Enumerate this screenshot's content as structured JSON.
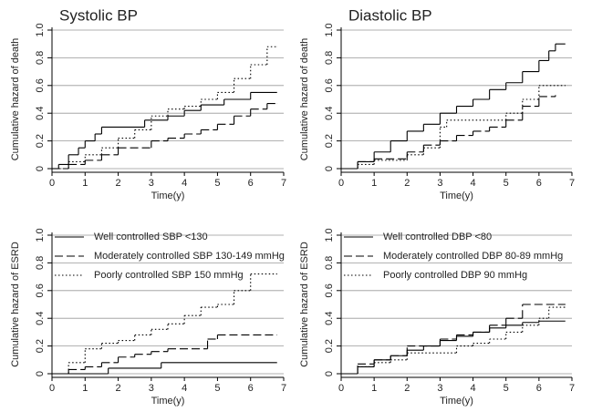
{
  "chart_data": [
    {
      "type": "step",
      "title": "Systolic BP",
      "xlabel": "Time(y)",
      "ylabel": "Cumulative hazard of death",
      "xlim": [
        0,
        7
      ],
      "xticks": [
        0,
        1,
        2,
        3,
        4,
        5,
        6,
        7
      ],
      "ylim": [
        0,
        1
      ],
      "yticks": [
        0,
        0.2,
        0.4,
        0.6,
        0.8,
        {
          "value": 1,
          "label": "1.0"
        }
      ],
      "grid": true,
      "series": [
        {
          "color": "#000000",
          "dash": "solid",
          "x": [
            0,
            0.2,
            0.5,
            0.8,
            1,
            1.3,
            1.5,
            2.8,
            3.5,
            4,
            4.5,
            5.2,
            6,
            6.8
          ],
          "values": [
            0,
            0.03,
            0.1,
            0.15,
            0.2,
            0.25,
            0.3,
            0.35,
            0.38,
            0.42,
            0.46,
            0.5,
            0.55,
            0.55
          ]
        },
        {
          "color": "#000000",
          "dash": "dashed",
          "x": [
            0,
            0.5,
            1,
            1.5,
            2,
            3,
            3.5,
            4,
            4.5,
            5,
            5.5,
            6,
            6.5,
            6.8
          ],
          "values": [
            0,
            0.03,
            0.06,
            0.1,
            0.15,
            0.2,
            0.22,
            0.25,
            0.28,
            0.32,
            0.38,
            0.43,
            0.47,
            0.47
          ]
        },
        {
          "color": "#000000",
          "dash": "dotted",
          "x": [
            0,
            0.5,
            1,
            1.5,
            2,
            2.5,
            3,
            3.5,
            4,
            4.5,
            5,
            5.5,
            6,
            6.5,
            6.8
          ],
          "values": [
            0,
            0.05,
            0.1,
            0.15,
            0.22,
            0.28,
            0.38,
            0.43,
            0.45,
            0.5,
            0.55,
            0.65,
            0.75,
            0.88,
            0.88
          ]
        }
      ]
    },
    {
      "type": "step",
      "title": "Diastolic BP",
      "xlabel": "Time(y)",
      "ylabel": "Cumulative hazard of death",
      "xlim": [
        0,
        7
      ],
      "xticks": [
        0,
        1,
        2,
        3,
        4,
        5,
        6,
        7
      ],
      "ylim": [
        0,
        1
      ],
      "yticks": [
        0,
        0.2,
        0.4,
        0.6,
        0.8,
        {
          "value": 1,
          "label": "1.0"
        }
      ],
      "grid": true,
      "series": [
        {
          "color": "#000000",
          "dash": "solid",
          "x": [
            0,
            0.5,
            1,
            1.5,
            2,
            2.5,
            3,
            3.5,
            4,
            4.5,
            5,
            5.5,
            6,
            6.3,
            6.5,
            6.8
          ],
          "values": [
            0,
            0.05,
            0.12,
            0.2,
            0.27,
            0.32,
            0.4,
            0.45,
            0.5,
            0.57,
            0.62,
            0.7,
            0.78,
            0.85,
            0.9,
            0.9
          ]
        },
        {
          "color": "#000000",
          "dash": "dashed",
          "x": [
            0,
            0.5,
            1,
            2,
            2.5,
            3,
            3.5,
            4,
            4.5,
            5,
            5.5,
            6,
            6.5
          ],
          "values": [
            0,
            0.05,
            0.07,
            0.12,
            0.17,
            0.2,
            0.24,
            0.27,
            0.3,
            0.35,
            0.45,
            0.52,
            0.53
          ]
        },
        {
          "color": "#000000",
          "dash": "dotted",
          "x": [
            0,
            0.5,
            1,
            2,
            2.5,
            3,
            3.2,
            5,
            5.5,
            6,
            6.8
          ],
          "values": [
            0,
            0.03,
            0.06,
            0.1,
            0.15,
            0.3,
            0.35,
            0.4,
            0.5,
            0.6,
            0.6
          ]
        }
      ]
    },
    {
      "type": "step",
      "xlabel": "Time(y)",
      "ylabel": "Cumulative hazard of ESRD",
      "xlim": [
        0,
        7
      ],
      "xticks": [
        0,
        1,
        2,
        3,
        4,
        5,
        6,
        7
      ],
      "ylim": [
        0,
        1
      ],
      "yticks": [
        0,
        0.2,
        0.4,
        0.6,
        0.8,
        {
          "value": 1,
          "label": "1.0"
        }
      ],
      "grid": true,
      "legend": "upper left",
      "series": [
        {
          "name": "Well controlled SBP <130",
          "color": "#000000",
          "dash": "solid",
          "x": [
            0,
            1.7,
            3.3,
            6.8
          ],
          "values": [
            0,
            0.04,
            0.08,
            0.08
          ]
        },
        {
          "name": "Moderately controlled SBP 130-149 mmHg",
          "color": "#000000",
          "dash": "dashed",
          "x": [
            0,
            0.5,
            1,
            1.5,
            2,
            2.5,
            3,
            3.5,
            4.7,
            5,
            6.8
          ],
          "values": [
            0,
            0.03,
            0.05,
            0.08,
            0.12,
            0.14,
            0.16,
            0.18,
            0.25,
            0.28,
            0.28
          ]
        },
        {
          "name": "Poorly controlled SBP  150 mmHg",
          "color": "#000000",
          "dash": "dotted",
          "x": [
            0,
            0.5,
            1,
            1.5,
            2,
            2.5,
            3,
            3.5,
            4,
            4.5,
            5,
            5.5,
            6,
            6.8
          ],
          "values": [
            0,
            0.08,
            0.18,
            0.22,
            0.24,
            0.28,
            0.32,
            0.36,
            0.42,
            0.48,
            0.5,
            0.6,
            0.72,
            0.72
          ]
        }
      ]
    },
    {
      "type": "step",
      "xlabel": "Time(y)",
      "ylabel": "Cumulative hazard of ESRD",
      "xlim": [
        0,
        7
      ],
      "xticks": [
        0,
        1,
        2,
        3,
        4,
        5,
        6,
        7
      ],
      "ylim": [
        0,
        1
      ],
      "yticks": [
        0,
        0.2,
        0.4,
        0.6,
        0.8,
        {
          "value": 1,
          "label": "1.0"
        }
      ],
      "grid": true,
      "legend": "upper left",
      "series": [
        {
          "name": "Well controlled DBP <80",
          "color": "#000000",
          "dash": "solid",
          "x": [
            0,
            0.5,
            1,
            1.5,
            2,
            2.5,
            3,
            3.5,
            4,
            4.5,
            5,
            5.5,
            6,
            6.8
          ],
          "values": [
            0,
            0.05,
            0.1,
            0.13,
            0.17,
            0.2,
            0.24,
            0.27,
            0.3,
            0.33,
            0.35,
            0.37,
            0.38,
            0.38
          ]
        },
        {
          "name": "Moderately controlled DBP 80-89 mmHg",
          "color": "#000000",
          "dash": "dashed",
          "x": [
            0,
            0.5,
            1,
            1.5,
            2,
            3,
            3.5,
            4,
            4.5,
            5,
            5.5,
            6.8
          ],
          "values": [
            0,
            0.07,
            0.1,
            0.13,
            0.2,
            0.25,
            0.28,
            0.3,
            0.35,
            0.4,
            0.5,
            0.5
          ]
        },
        {
          "name": "Poorly controlled DBP  90 mmHg",
          "color": "#000000",
          "dash": "dotted",
          "x": [
            0,
            0.5,
            1,
            1.5,
            2,
            3.5,
            4,
            4.5,
            5,
            5.5,
            6,
            6.3,
            6.8
          ],
          "values": [
            0,
            0.05,
            0.08,
            0.1,
            0.15,
            0.2,
            0.22,
            0.25,
            0.3,
            0.35,
            0.4,
            0.48,
            0.48
          ]
        }
      ]
    }
  ]
}
